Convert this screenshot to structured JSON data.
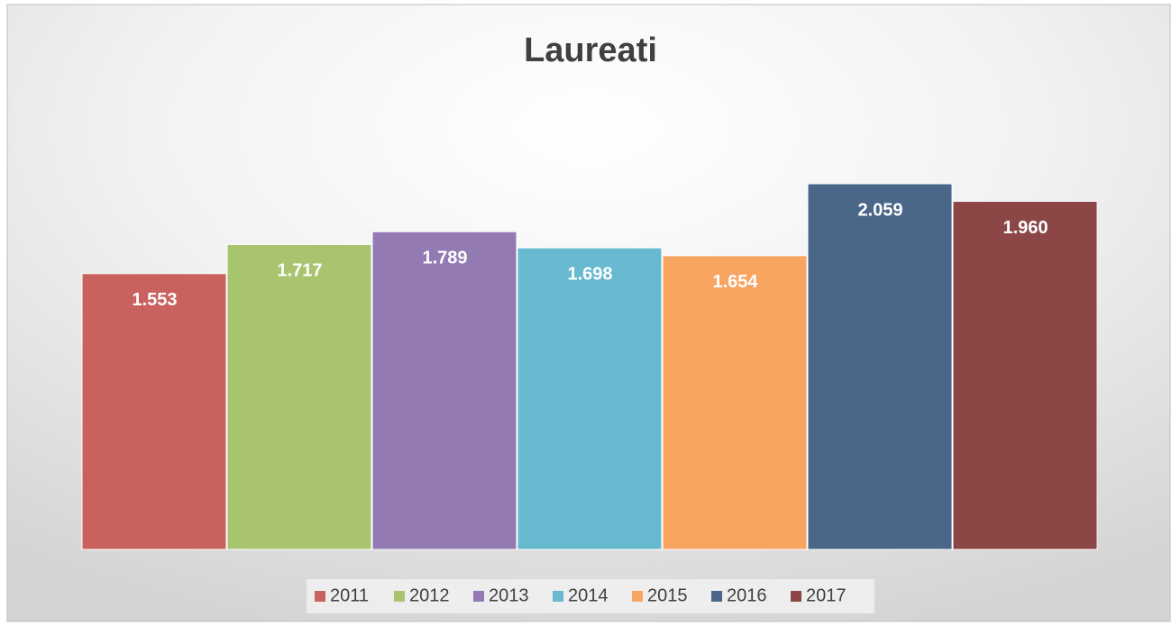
{
  "chart_data": {
    "type": "bar",
    "title": "Laureati",
    "series": [
      {
        "name": "2011",
        "color": "#c9625f",
        "values": [
          1553
        ],
        "value_labels": [
          "1.553"
        ]
      },
      {
        "name": "2012",
        "color": "#a9c46f",
        "values": [
          1717
        ],
        "value_labels": [
          "1.717"
        ]
      },
      {
        "name": "2013",
        "color": "#937ab3",
        "values": [
          1789
        ],
        "value_labels": [
          "1.789"
        ]
      },
      {
        "name": "2014",
        "color": "#67b9cf",
        "values": [
          1698
        ],
        "value_labels": [
          "1.698"
        ]
      },
      {
        "name": "2015",
        "color": "#f8a561",
        "values": [
          1654
        ],
        "value_labels": [
          "1.654"
        ]
      },
      {
        "name": "2016",
        "color": "#4a6789",
        "values": [
          2059
        ],
        "value_labels": [
          "2.059"
        ]
      },
      {
        "name": "2017",
        "color": "#8b4645",
        "values": [
          1960
        ],
        "value_labels": [
          "1.960"
        ]
      }
    ],
    "legend": "bottom"
  }
}
